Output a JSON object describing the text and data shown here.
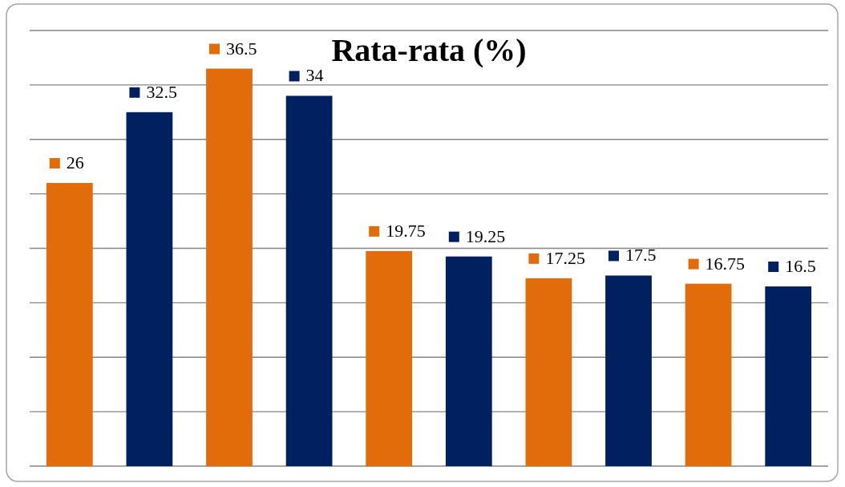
{
  "chart_data": {
    "type": "bar",
    "title": "Rata-rata (%)",
    "categories": [
      null,
      null,
      null,
      null,
      null,
      null,
      null,
      null,
      null,
      null
    ],
    "values": [
      26,
      32.5,
      36.5,
      34,
      19.75,
      19.25,
      17.25,
      17.5,
      16.75,
      16.5
    ],
    "colors": [
      "#e36c0a",
      "#002060",
      "#e36c0a",
      "#002060",
      "#e36c0a",
      "#002060",
      "#e36c0a",
      "#002060",
      "#e36c0a",
      "#002060"
    ],
    "ylim": [
      0,
      40
    ],
    "yticks": [
      {
        "value": 0,
        "label": null
      },
      {
        "value": 5,
        "label": null
      },
      {
        "value": 10,
        "label": null
      },
      {
        "value": 15,
        "label": null
      },
      {
        "value": 20,
        "label": null
      },
      {
        "value": 25,
        "label": null
      },
      {
        "value": 30,
        "label": null
      },
      {
        "value": 35,
        "label": null
      },
      {
        "value": 40,
        "label": null
      }
    ],
    "grid": true,
    "data_labels": true
  }
}
